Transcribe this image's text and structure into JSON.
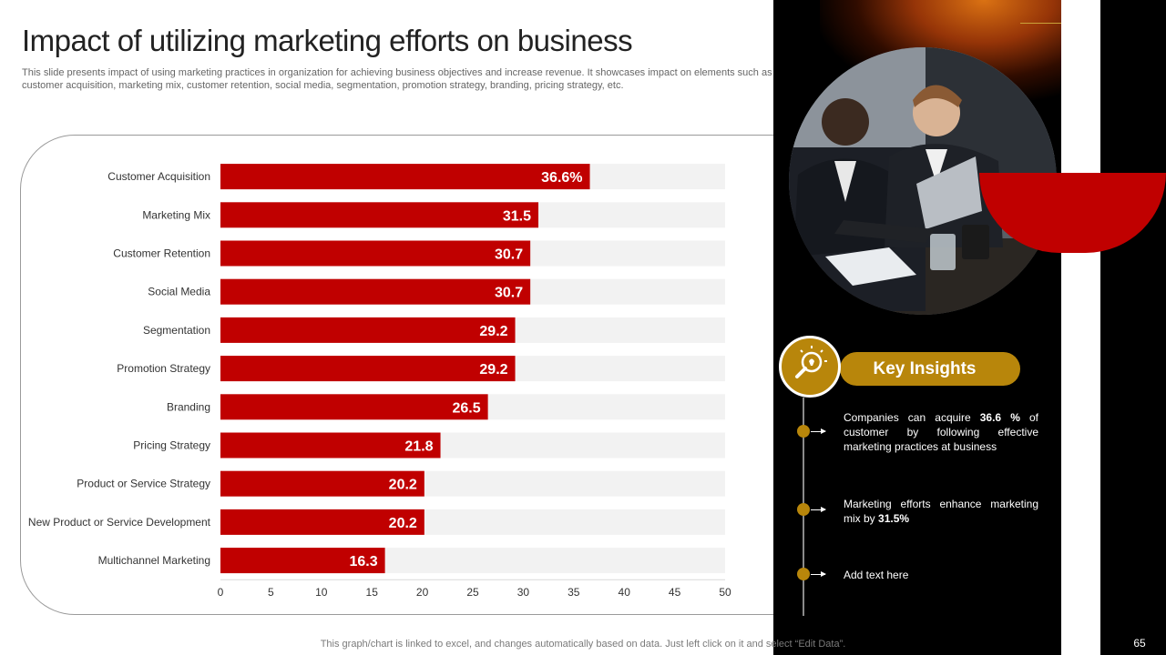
{
  "title": "Impact of utilizing marketing efforts on business",
  "subtitle": "This slide presents impact of using marketing practices in organization for achieving business objectives and increase revenue. It showcases impact on elements such as customer acquisition, marketing mix, customer retention, social media, segmentation, promotion strategy, branding, pricing strategy, etc.",
  "chart_data": {
    "type": "bar",
    "orientation": "horizontal",
    "categories": [
      "Customer Acquisition",
      "Marketing Mix",
      "Customer Retention",
      "Social Media",
      "Segmentation",
      "Promotion Strategy",
      "Branding",
      "Pricing Strategy",
      "Product or Service Strategy",
      "New Product or Service Development",
      "Multichannel Marketing"
    ],
    "values": [
      36.6,
      31.5,
      30.7,
      30.7,
      29.2,
      29.2,
      26.5,
      21.8,
      20.2,
      20.2,
      16.3
    ],
    "data_labels": [
      "36.6%",
      "31.5",
      "30.7",
      "30.7",
      "29.2",
      "29.2",
      "26.5",
      "21.8",
      "20.2",
      "20.2",
      "16.3"
    ],
    "xlim": [
      0,
      50
    ],
    "xticks": [
      0,
      5,
      10,
      15,
      20,
      25,
      30,
      35,
      40,
      45,
      50
    ],
    "xlabel": "",
    "ylabel": "",
    "bar_color": "#c00000",
    "track_color": "#f2f2f2",
    "grid": false
  },
  "insights": {
    "title": "Key Insights",
    "items": [
      {
        "pre": "Companies can acquire ",
        "bold": "36.6 %",
        "post": " of customer by following effective marketing practices at business"
      },
      {
        "pre": "Marketing efforts enhance marketing mix by ",
        "bold": "31.5%",
        "post": ""
      },
      {
        "pre": "Add text here",
        "bold": "",
        "post": ""
      }
    ]
  },
  "footnote": "This graph/chart is linked to excel,  and changes automatically based on data. Just left click on it and select “Edit Data”.",
  "page_number": "65",
  "colors": {
    "accent": "#c00000",
    "gold": "#b8860b",
    "dark": "#000000"
  },
  "icons": {
    "insight": "lightbulb-magnifier-icon"
  }
}
